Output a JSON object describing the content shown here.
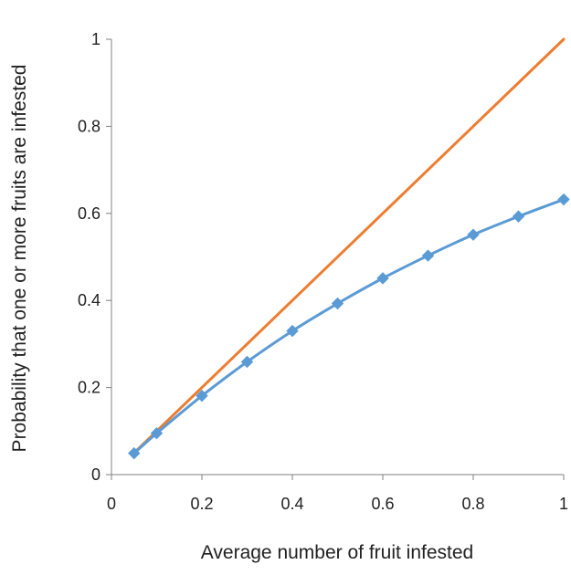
{
  "chart_data": {
    "type": "line",
    "title": "",
    "xlabel": "Average number of fruit infested",
    "ylabel": "Probability that one or more fruits are infested",
    "xlim": [
      0,
      1
    ],
    "ylim": [
      0,
      1
    ],
    "x_ticks": [
      "0",
      "0.2",
      "0.4",
      "0.6",
      "0.8",
      "1"
    ],
    "y_ticks": [
      "0",
      "0.2",
      "0.4",
      "0.6",
      "0.8",
      "1"
    ],
    "grid": false,
    "legend": "none",
    "series": [
      {
        "color": "#5b9bd5",
        "marker": "diamond",
        "x": [
          0.05,
          0.1,
          0.2,
          0.3,
          0.4,
          0.5,
          0.6,
          0.7,
          0.8,
          0.9,
          1.0
        ],
        "y": [
          0.049,
          0.095,
          0.181,
          0.259,
          0.33,
          0.393,
          0.451,
          0.503,
          0.551,
          0.593,
          0.632
        ]
      },
      {
        "color": "#ed7d31",
        "marker": "none",
        "x": [
          0.05,
          1.0
        ],
        "y": [
          0.05,
          1.0
        ]
      }
    ]
  }
}
